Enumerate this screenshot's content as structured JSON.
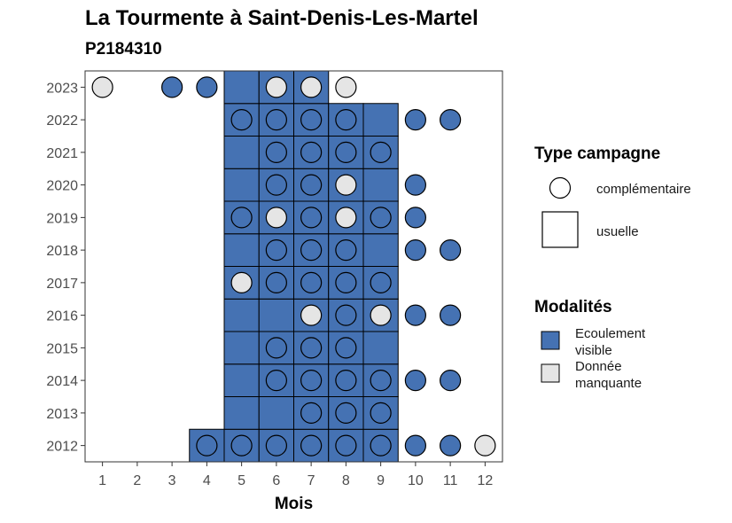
{
  "title": "La Tourmente à Saint-Denis-Les-Martel",
  "subtitle": "P2184310",
  "chart_data": {
    "type": "heatmap",
    "xlabel": "Mois",
    "x_ticks": [
      "1",
      "2",
      "3",
      "4",
      "5",
      "6",
      "7",
      "8",
      "9",
      "10",
      "11",
      "12"
    ],
    "y_ticks": [
      "2012",
      "2013",
      "2014",
      "2015",
      "2016",
      "2017",
      "2018",
      "2019",
      "2020",
      "2021",
      "2022",
      "2023"
    ],
    "xlim": [
      0.5,
      12.5
    ],
    "ylim": [
      2011.5,
      2023.5
    ],
    "grid": false,
    "legend_position": "right",
    "colors": {
      "Ecoulement visible": "#4572b3",
      "Donnée manquante": "#e5e5e5"
    },
    "usuelle": [
      {
        "year": 2012,
        "months": [
          4,
          5,
          6,
          7,
          8,
          9
        ]
      },
      {
        "year": 2013,
        "months": [
          5,
          6,
          7,
          8,
          9
        ]
      },
      {
        "year": 2014,
        "months": [
          5,
          6,
          7,
          8,
          9
        ]
      },
      {
        "year": 2015,
        "months": [
          5,
          6,
          7,
          8,
          9
        ]
      },
      {
        "year": 2016,
        "months": [
          5,
          6,
          7,
          8,
          9
        ]
      },
      {
        "year": 2017,
        "months": [
          5,
          6,
          7,
          8,
          9
        ]
      },
      {
        "year": 2018,
        "months": [
          5,
          6,
          7,
          8,
          9
        ]
      },
      {
        "year": 2019,
        "months": [
          5,
          6,
          7,
          8,
          9
        ]
      },
      {
        "year": 2020,
        "months": [
          5,
          6,
          7,
          8,
          9
        ]
      },
      {
        "year": 2021,
        "months": [
          5,
          6,
          7,
          8,
          9
        ]
      },
      {
        "year": 2022,
        "months": [
          5,
          6,
          7,
          8,
          9
        ]
      },
      {
        "year": 2023,
        "months": [
          5,
          6,
          7
        ]
      }
    ],
    "complementaire": [
      {
        "year": 2012,
        "points": [
          [
            4,
            "Ecoulement visible"
          ],
          [
            5,
            "Ecoulement visible"
          ],
          [
            6,
            "Ecoulement visible"
          ],
          [
            7,
            "Ecoulement visible"
          ],
          [
            8,
            "Ecoulement visible"
          ],
          [
            9,
            "Ecoulement visible"
          ],
          [
            10,
            "Ecoulement visible"
          ],
          [
            11,
            "Ecoulement visible"
          ],
          [
            12,
            "Donnée manquante"
          ]
        ]
      },
      {
        "year": 2013,
        "points": [
          [
            7,
            "Ecoulement visible"
          ],
          [
            8,
            "Ecoulement visible"
          ],
          [
            9,
            "Ecoulement visible"
          ]
        ]
      },
      {
        "year": 2014,
        "points": [
          [
            6,
            "Ecoulement visible"
          ],
          [
            7,
            "Ecoulement visible"
          ],
          [
            8,
            "Ecoulement visible"
          ],
          [
            9,
            "Ecoulement visible"
          ],
          [
            10,
            "Ecoulement visible"
          ],
          [
            11,
            "Ecoulement visible"
          ]
        ]
      },
      {
        "year": 2015,
        "points": [
          [
            6,
            "Ecoulement visible"
          ],
          [
            7,
            "Ecoulement visible"
          ],
          [
            8,
            "Ecoulement visible"
          ]
        ]
      },
      {
        "year": 2016,
        "points": [
          [
            7,
            "Donnée manquante"
          ],
          [
            8,
            "Ecoulement visible"
          ],
          [
            9,
            "Donnée manquante"
          ],
          [
            10,
            "Ecoulement visible"
          ],
          [
            11,
            "Ecoulement visible"
          ]
        ]
      },
      {
        "year": 2017,
        "points": [
          [
            5,
            "Donnée manquante"
          ],
          [
            6,
            "Ecoulement visible"
          ],
          [
            7,
            "Ecoulement visible"
          ],
          [
            8,
            "Ecoulement visible"
          ],
          [
            9,
            "Ecoulement visible"
          ]
        ]
      },
      {
        "year": 2018,
        "points": [
          [
            6,
            "Ecoulement visible"
          ],
          [
            7,
            "Ecoulement visible"
          ],
          [
            8,
            "Ecoulement visible"
          ],
          [
            10,
            "Ecoulement visible"
          ],
          [
            11,
            "Ecoulement visible"
          ]
        ]
      },
      {
        "year": 2019,
        "points": [
          [
            5,
            "Ecoulement visible"
          ],
          [
            6,
            "Donnée manquante"
          ],
          [
            7,
            "Ecoulement visible"
          ],
          [
            8,
            "Donnée manquante"
          ],
          [
            9,
            "Ecoulement visible"
          ],
          [
            10,
            "Ecoulement visible"
          ]
        ]
      },
      {
        "year": 2020,
        "points": [
          [
            6,
            "Ecoulement visible"
          ],
          [
            7,
            "Ecoulement visible"
          ],
          [
            8,
            "Donnée manquante"
          ],
          [
            10,
            "Ecoulement visible"
          ]
        ]
      },
      {
        "year": 2021,
        "points": [
          [
            6,
            "Ecoulement visible"
          ],
          [
            7,
            "Ecoulement visible"
          ],
          [
            8,
            "Ecoulement visible"
          ],
          [
            9,
            "Ecoulement visible"
          ]
        ]
      },
      {
        "year": 2022,
        "points": [
          [
            5,
            "Ecoulement visible"
          ],
          [
            6,
            "Ecoulement visible"
          ],
          [
            7,
            "Ecoulement visible"
          ],
          [
            8,
            "Ecoulement visible"
          ],
          [
            10,
            "Ecoulement visible"
          ],
          [
            11,
            "Ecoulement visible"
          ]
        ]
      },
      {
        "year": 2023,
        "points": [
          [
            1,
            "Donnée manquante"
          ],
          [
            3,
            "Ecoulement visible"
          ],
          [
            4,
            "Ecoulement visible"
          ],
          [
            6,
            "Donnée manquante"
          ],
          [
            7,
            "Donnée manquante"
          ],
          [
            8,
            "Donnée manquante"
          ]
        ]
      }
    ],
    "legend": {
      "type_title": "Type campagne",
      "type_items": [
        "complémentaire",
        "usuelle"
      ],
      "mod_title": "Modalités",
      "mod_items": [
        {
          "line1": "Ecoulement",
          "line2": "visible",
          "key": "Ecoulement visible"
        },
        {
          "line1": "Donnée",
          "line2": "manquante",
          "key": "Donnée manquante"
        }
      ]
    }
  }
}
